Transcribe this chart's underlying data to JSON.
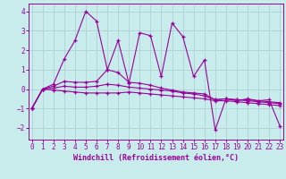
{
  "xlabel": "Windchill (Refroidissement éolien,°C)",
  "bg_color": "#c8ecec",
  "line_color": "#990099",
  "grid_color": "#aacccc",
  "x_ticks": [
    0,
    1,
    2,
    3,
    4,
    5,
    6,
    7,
    8,
    9,
    10,
    11,
    12,
    13,
    14,
    15,
    16,
    17,
    18,
    19,
    20,
    21,
    22,
    23
  ],
  "y_ticks": [
    -2,
    -1,
    0,
    1,
    2,
    3,
    4
  ],
  "ylim": [
    -2.6,
    4.4
  ],
  "xlim": [
    -0.3,
    23.3
  ],
  "series1_y": [
    -1.0,
    0.0,
    0.25,
    1.55,
    2.5,
    4.0,
    3.5,
    1.0,
    2.5,
    0.3,
    2.9,
    2.75,
    0.65,
    3.4,
    2.7,
    0.65,
    1.5,
    -2.1,
    -0.5,
    -0.6,
    -0.5,
    -0.6,
    -0.55,
    -1.9
  ],
  "series2_y": [
    -1.0,
    0.0,
    0.15,
    0.4,
    0.35,
    0.35,
    0.4,
    1.0,
    0.85,
    0.35,
    0.3,
    0.2,
    0.05,
    -0.05,
    -0.15,
    -0.2,
    -0.25,
    -0.55,
    -0.5,
    -0.55,
    -0.55,
    -0.6,
    -0.65,
    -0.7
  ],
  "series3_y": [
    -1.0,
    0.0,
    0.05,
    0.15,
    0.1,
    0.1,
    0.15,
    0.25,
    0.2,
    0.1,
    0.05,
    0.0,
    -0.05,
    -0.1,
    -0.2,
    -0.25,
    -0.35,
    -0.55,
    -0.5,
    -0.55,
    -0.6,
    -0.65,
    -0.7,
    -0.75
  ],
  "series4_y": [
    -1.0,
    0.0,
    -0.05,
    -0.1,
    -0.15,
    -0.2,
    -0.2,
    -0.2,
    -0.2,
    -0.15,
    -0.2,
    -0.25,
    -0.3,
    -0.35,
    -0.4,
    -0.45,
    -0.5,
    -0.6,
    -0.6,
    -0.65,
    -0.7,
    -0.75,
    -0.8,
    -0.85
  ],
  "tick_fontsize": 5.5,
  "label_fontsize": 6.0
}
